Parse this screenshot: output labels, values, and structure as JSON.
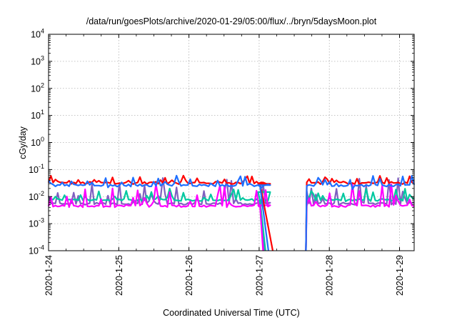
{
  "chart_data": {
    "type": "line",
    "title": "/data/run/goesPlots/archive/2020-01-29/05:00/flux/../bryn/5daysMoon.plot",
    "xlabel": "Coordinated Universal Time (UTC)",
    "ylabel": "cGy/day",
    "yscale": "log",
    "ylim": [
      0.0001,
      10000
    ],
    "xlim": [
      "2020-01-24 00:00",
      "2020-01-29 05:00"
    ],
    "grid": true,
    "x_ticks": [
      "2020-1-24",
      "2020-1-25",
      "2020-1-26",
      "2020-1-27",
      "2020-1-28",
      "2020-1-29"
    ],
    "y_ticks": [
      {
        "value": 0.0001,
        "base": "10",
        "exp": "-4"
      },
      {
        "value": 0.001,
        "base": "10",
        "exp": "-3"
      },
      {
        "value": 0.01,
        "base": "10",
        "exp": "-2"
      },
      {
        "value": 0.1,
        "base": "10",
        "exp": "-1"
      },
      {
        "value": 1,
        "base": "10",
        "exp": "0"
      },
      {
        "value": 10,
        "base": "10",
        "exp": "1"
      },
      {
        "value": 100,
        "base": "10",
        "exp": "2"
      },
      {
        "value": 1000,
        "base": "10",
        "exp": "3"
      },
      {
        "value": 10000,
        "base": "10",
        "exp": "4"
      }
    ],
    "data_gap": [
      "2020-01-27 04:00",
      "2020-01-27 16:00"
    ],
    "series": [
      {
        "color": "#ff0000",
        "base": 0.032,
        "spike_max": 0.06,
        "dip_min": 0.024,
        "decay_end": [
          "2020-01-27 04:40",
          0.0001
        ]
      },
      {
        "color": "#1e6fff",
        "base": 0.026,
        "spike_max": 0.06,
        "dip_min": 0.014,
        "decay_end": [
          "2020-01-27 03:10",
          0.0001
        ]
      },
      {
        "color": "#00c8a0",
        "base": 0.0075,
        "spike_max": 0.02,
        "dip_min": 0.006,
        "decay_end": [
          "2020-01-27 02:10",
          0.0001
        ]
      },
      {
        "color": "#8060c0",
        "base": 0.0055,
        "spike_max": 0.05,
        "dip_min": 0.0045,
        "decay_end": [
          "2020-01-27 01:40",
          0.0001
        ]
      },
      {
        "color": "#ff00ff",
        "base": 0.0045,
        "spike_max": 0.03,
        "dip_min": 0.004,
        "decay_end": [
          "2020-01-27 01:20",
          0.0001
        ]
      }
    ]
  }
}
